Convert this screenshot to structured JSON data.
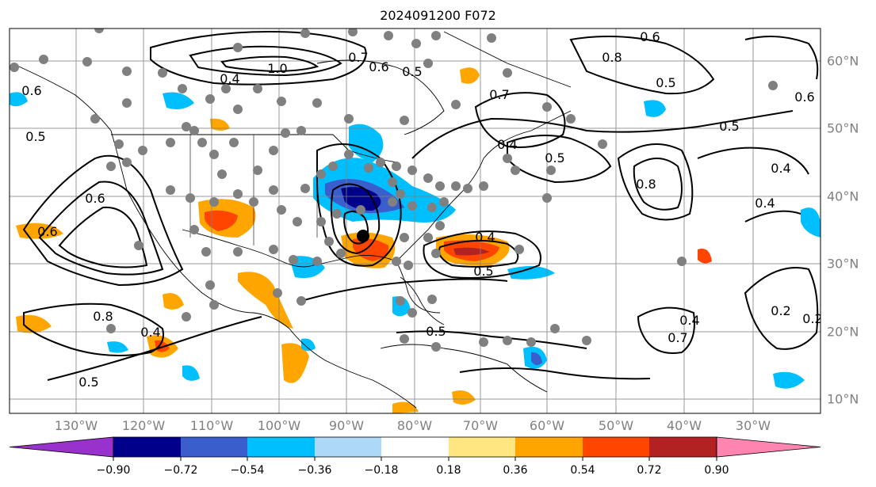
{
  "title": "2024091200 F072",
  "map": {
    "lon_labels": [
      "130°W",
      "120°W",
      "110°W",
      "100°W",
      "90°W",
      "80°W",
      "70°W",
      "60°W",
      "50°W",
      "40°W",
      "30°W"
    ],
    "lat_labels": [
      "60°N",
      "50°N",
      "40°N",
      "30°N",
      "20°N",
      "10°N"
    ],
    "contour_labels": [
      "1.0",
      "0.7",
      "0.5",
      "0.6",
      "0.4",
      "0.6",
      "0.8",
      "0.5",
      "0.6",
      "0.5",
      "0.4",
      "0.5",
      "0.6",
      "0.8",
      "0.6",
      "0.4",
      "0.5",
      "0.5",
      "0.4",
      "0.7",
      "0.8",
      "0.4",
      "0.2",
      "0.2",
      "0.5",
      "0.4",
      "0.5",
      "0.7",
      "0.6",
      "0.4"
    ],
    "colors": {
      "grid": "#808080",
      "contour": "#000000",
      "ocean_background": "#ffffff"
    }
  },
  "colorbar": {
    "ticks": [
      "−0.90",
      "−0.72",
      "−0.54",
      "−0.36",
      "−0.18",
      "0.18",
      "0.36",
      "0.54",
      "0.72",
      "0.90"
    ],
    "colors": [
      "#9932cc",
      "#00008b",
      "#3a5fcd",
      "#00bfff",
      "#add8f6",
      "#ffffff",
      "#ffe680",
      "#ffa500",
      "#ff4500",
      "#b22222",
      "#ff85b0"
    ]
  }
}
